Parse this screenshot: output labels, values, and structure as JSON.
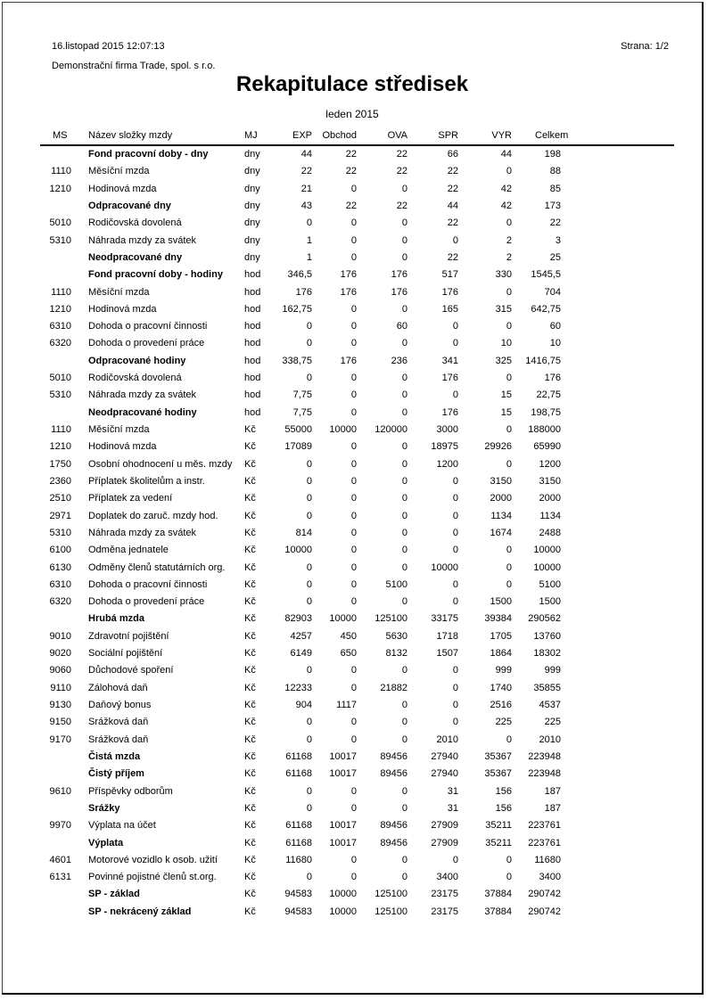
{
  "header": {
    "datetime": "16.listopad 2015  12:07:13",
    "page_label": "Strana: 1/2",
    "company": "Demonstrační firma Trade, spol. s r.o.",
    "title": "Rekapitulace středisek",
    "period": "leden 2015"
  },
  "table": {
    "columns": [
      "MS",
      "Název složky mzdy",
      "MJ",
      "EXP",
      "Obchod",
      "OVA",
      "SPR",
      "VYR",
      "Celkem"
    ],
    "rows": [
      {
        "ms": "",
        "name": "Fond pracovní doby - dny",
        "bold": true,
        "mj": "dny",
        "values": [
          "44",
          "22",
          "22",
          "66",
          "44",
          "198"
        ]
      },
      {
        "ms": "1110",
        "name": "Měsíční mzda",
        "bold": false,
        "mj": "dny",
        "values": [
          "22",
          "22",
          "22",
          "22",
          "0",
          "88"
        ]
      },
      {
        "ms": "1210",
        "name": "Hodinová mzda",
        "bold": false,
        "mj": "dny",
        "values": [
          "21",
          "0",
          "0",
          "22",
          "42",
          "85"
        ]
      },
      {
        "ms": "",
        "name": "Odpracované dny",
        "bold": true,
        "mj": "dny",
        "values": [
          "43",
          "22",
          "22",
          "44",
          "42",
          "173"
        ]
      },
      {
        "ms": "5010",
        "name": "Rodičovská dovolená",
        "bold": false,
        "mj": "dny",
        "values": [
          "0",
          "0",
          "0",
          "22",
          "0",
          "22"
        ]
      },
      {
        "ms": "5310",
        "name": "Náhrada mzdy za svátek",
        "bold": false,
        "mj": "dny",
        "values": [
          "1",
          "0",
          "0",
          "0",
          "2",
          "3"
        ]
      },
      {
        "ms": "",
        "name": "Neodpracované dny",
        "bold": true,
        "mj": "dny",
        "values": [
          "1",
          "0",
          "0",
          "22",
          "2",
          "25"
        ]
      },
      {
        "ms": "",
        "name": "Fond pracovní doby - hodiny",
        "bold": true,
        "mj": "hod",
        "values": [
          "346,5",
          "176",
          "176",
          "517",
          "330",
          "1545,5"
        ]
      },
      {
        "ms": "1110",
        "name": "Měsíční mzda",
        "bold": false,
        "mj": "hod",
        "values": [
          "176",
          "176",
          "176",
          "176",
          "0",
          "704"
        ]
      },
      {
        "ms": "1210",
        "name": "Hodinová mzda",
        "bold": false,
        "mj": "hod",
        "values": [
          "162,75",
          "0",
          "0",
          "165",
          "315",
          "642,75"
        ]
      },
      {
        "ms": "6310",
        "name": "Dohoda o pracovní činnosti",
        "bold": false,
        "mj": "hod",
        "values": [
          "0",
          "0",
          "60",
          "0",
          "0",
          "60"
        ]
      },
      {
        "ms": "6320",
        "name": "Dohoda o provedení práce",
        "bold": false,
        "mj": "hod",
        "values": [
          "0",
          "0",
          "0",
          "0",
          "10",
          "10"
        ]
      },
      {
        "ms": "",
        "name": "Odpracované hodiny",
        "bold": true,
        "mj": "hod",
        "values": [
          "338,75",
          "176",
          "236",
          "341",
          "325",
          "1416,75"
        ]
      },
      {
        "ms": "5010",
        "name": "Rodičovská dovolená",
        "bold": false,
        "mj": "hod",
        "values": [
          "0",
          "0",
          "0",
          "176",
          "0",
          "176"
        ]
      },
      {
        "ms": "5310",
        "name": "Náhrada mzdy za svátek",
        "bold": false,
        "mj": "hod",
        "values": [
          "7,75",
          "0",
          "0",
          "0",
          "15",
          "22,75"
        ]
      },
      {
        "ms": "",
        "name": "Neodpracované hodiny",
        "bold": true,
        "mj": "hod",
        "values": [
          "7,75",
          "0",
          "0",
          "176",
          "15",
          "198,75"
        ]
      },
      {
        "ms": "1110",
        "name": "Měsíční mzda",
        "bold": false,
        "mj": "Kč",
        "values": [
          "55000",
          "10000",
          "120000",
          "3000",
          "0",
          "188000"
        ]
      },
      {
        "ms": "1210",
        "name": "Hodinová mzda",
        "bold": false,
        "mj": "Kč",
        "values": [
          "17089",
          "0",
          "0",
          "18975",
          "29926",
          "65990"
        ]
      },
      {
        "ms": "1750",
        "name": "Osobní ohodnocení u měs. mzdy",
        "bold": false,
        "mj": "Kč",
        "values": [
          "0",
          "0",
          "0",
          "1200",
          "0",
          "1200"
        ]
      },
      {
        "ms": "2360",
        "name": "Příplatek školitelům a instr.",
        "bold": false,
        "mj": "Kč",
        "values": [
          "0",
          "0",
          "0",
          "0",
          "3150",
          "3150"
        ]
      },
      {
        "ms": "2510",
        "name": "Příplatek za vedení",
        "bold": false,
        "mj": "Kč",
        "values": [
          "0",
          "0",
          "0",
          "0",
          "2000",
          "2000"
        ]
      },
      {
        "ms": "2971",
        "name": "Doplatek do zaruč. mzdy hod.",
        "bold": false,
        "mj": "Kč",
        "values": [
          "0",
          "0",
          "0",
          "0",
          "1134",
          "1134"
        ]
      },
      {
        "ms": "5310",
        "name": "Náhrada mzdy za svátek",
        "bold": false,
        "mj": "Kč",
        "values": [
          "814",
          "0",
          "0",
          "0",
          "1674",
          "2488"
        ]
      },
      {
        "ms": "6100",
        "name": "Odměna jednatele",
        "bold": false,
        "mj": "Kč",
        "values": [
          "10000",
          "0",
          "0",
          "0",
          "0",
          "10000"
        ]
      },
      {
        "ms": "6130",
        "name": "Odměny členů statutárních org.",
        "bold": false,
        "mj": "Kč",
        "values": [
          "0",
          "0",
          "0",
          "10000",
          "0",
          "10000"
        ]
      },
      {
        "ms": "6310",
        "name": "Dohoda o pracovní činnosti",
        "bold": false,
        "mj": "Kč",
        "values": [
          "0",
          "0",
          "5100",
          "0",
          "0",
          "5100"
        ]
      },
      {
        "ms": "6320",
        "name": "Dohoda o provedení práce",
        "bold": false,
        "mj": "Kč",
        "values": [
          "0",
          "0",
          "0",
          "0",
          "1500",
          "1500"
        ]
      },
      {
        "ms": "",
        "name": "Hrubá mzda",
        "bold": true,
        "mj": "Kč",
        "values": [
          "82903",
          "10000",
          "125100",
          "33175",
          "39384",
          "290562"
        ]
      },
      {
        "ms": "9010",
        "name": "Zdravotní pojištění",
        "bold": false,
        "mj": "Kč",
        "values": [
          "4257",
          "450",
          "5630",
          "1718",
          "1705",
          "13760"
        ]
      },
      {
        "ms": "9020",
        "name": "Sociální pojištění",
        "bold": false,
        "mj": "Kč",
        "values": [
          "6149",
          "650",
          "8132",
          "1507",
          "1864",
          "18302"
        ]
      },
      {
        "ms": "9060",
        "name": "Důchodové spoření",
        "bold": false,
        "mj": "Kč",
        "values": [
          "0",
          "0",
          "0",
          "0",
          "999",
          "999"
        ]
      },
      {
        "ms": "9110",
        "name": "Zálohová daň",
        "bold": false,
        "mj": "Kč",
        "values": [
          "12233",
          "0",
          "21882",
          "0",
          "1740",
          "35855"
        ]
      },
      {
        "ms": "9130",
        "name": "Daňový bonus",
        "bold": false,
        "mj": "Kč",
        "values": [
          "904",
          "1117",
          "0",
          "0",
          "2516",
          "4537"
        ]
      },
      {
        "ms": "9150",
        "name": "Srážková daň",
        "bold": false,
        "mj": "Kč",
        "values": [
          "0",
          "0",
          "0",
          "0",
          "225",
          "225"
        ]
      },
      {
        "ms": "9170",
        "name": "Srážková daň",
        "bold": false,
        "mj": "Kč",
        "values": [
          "0",
          "0",
          "0",
          "2010",
          "0",
          "2010"
        ]
      },
      {
        "ms": "",
        "name": "Čistá mzda",
        "bold": true,
        "mj": "Kč",
        "values": [
          "61168",
          "10017",
          "89456",
          "27940",
          "35367",
          "223948"
        ]
      },
      {
        "ms": "",
        "name": "Čistý příjem",
        "bold": true,
        "mj": "Kč",
        "values": [
          "61168",
          "10017",
          "89456",
          "27940",
          "35367",
          "223948"
        ]
      },
      {
        "ms": "9610",
        "name": "Příspěvky odborům",
        "bold": false,
        "mj": "Kč",
        "values": [
          "0",
          "0",
          "0",
          "31",
          "156",
          "187"
        ]
      },
      {
        "ms": "",
        "name": "Srážky",
        "bold": true,
        "mj": "Kč",
        "values": [
          "0",
          "0",
          "0",
          "31",
          "156",
          "187"
        ]
      },
      {
        "ms": "9970",
        "name": "Výplata na účet",
        "bold": false,
        "mj": "Kč",
        "values": [
          "61168",
          "10017",
          "89456",
          "27909",
          "35211",
          "223761"
        ]
      },
      {
        "ms": "",
        "name": "Výplata",
        "bold": true,
        "mj": "Kč",
        "values": [
          "61168",
          "10017",
          "89456",
          "27909",
          "35211",
          "223761"
        ]
      },
      {
        "ms": "4601",
        "name": "Motorové vozidlo k osob. užití",
        "bold": false,
        "mj": "Kč",
        "values": [
          "11680",
          "0",
          "0",
          "0",
          "0",
          "11680"
        ]
      },
      {
        "ms": "6131",
        "name": "Povinné pojistné členů st.org.",
        "bold": false,
        "mj": "Kč",
        "values": [
          "0",
          "0",
          "0",
          "3400",
          "0",
          "3400"
        ]
      },
      {
        "ms": "",
        "name": "SP - základ",
        "bold": true,
        "mj": "Kč",
        "values": [
          "94583",
          "10000",
          "125100",
          "23175",
          "37884",
          "290742"
        ]
      },
      {
        "ms": "",
        "name": "SP - nekrácený základ",
        "bold": true,
        "mj": "Kč",
        "values": [
          "94583",
          "10000",
          "125100",
          "23175",
          "37884",
          "290742"
        ]
      }
    ]
  }
}
